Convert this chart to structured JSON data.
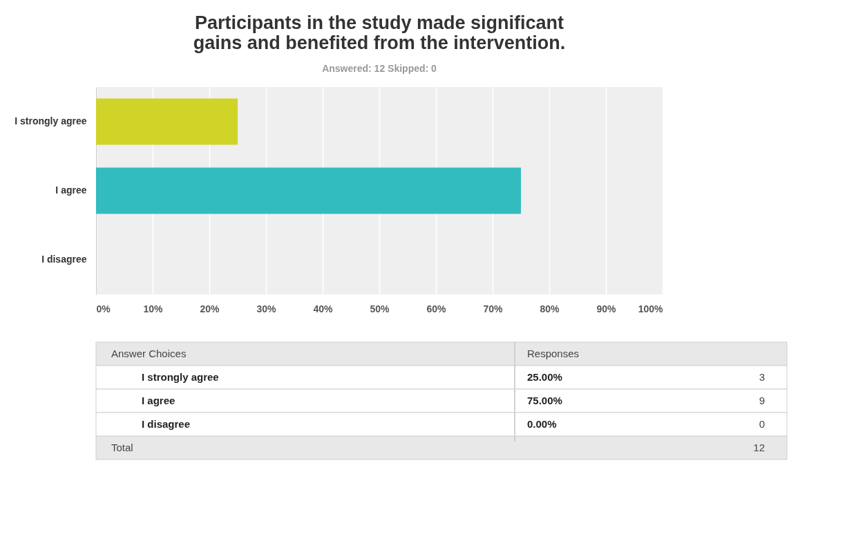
{
  "chart_data": {
    "type": "bar",
    "orientation": "horizontal",
    "title": "Participants in the study made significant gains and benefited from the intervention.",
    "subtitle": "Answered: 12    Skipped: 0",
    "categories": [
      "I strongly agree",
      "I agree",
      "I disagree"
    ],
    "values": [
      25,
      75,
      0
    ],
    "colors": [
      "#d0d428",
      "#33bcbf",
      "#f0a030"
    ],
    "xlim": [
      0,
      100
    ],
    "xticks": [
      {
        "value": 0,
        "label": "0%"
      },
      {
        "value": 10,
        "label": "10%"
      },
      {
        "value": 20,
        "label": "20%"
      },
      {
        "value": 30,
        "label": "30%"
      },
      {
        "value": 40,
        "label": "40%"
      },
      {
        "value": 50,
        "label": "50%"
      },
      {
        "value": 60,
        "label": "60%"
      },
      {
        "value": 70,
        "label": "70%"
      },
      {
        "value": 80,
        "label": "80%"
      },
      {
        "value": 90,
        "label": "90%"
      },
      {
        "value": 100,
        "label": "100%"
      }
    ],
    "grid": "x",
    "legend": false,
    "annotations": [
      "Answer Choices",
      "Responses",
      "25.00%",
      "3",
      "75.00%",
      "9",
      "0.00%",
      "0",
      "Total",
      "12"
    ]
  }
}
